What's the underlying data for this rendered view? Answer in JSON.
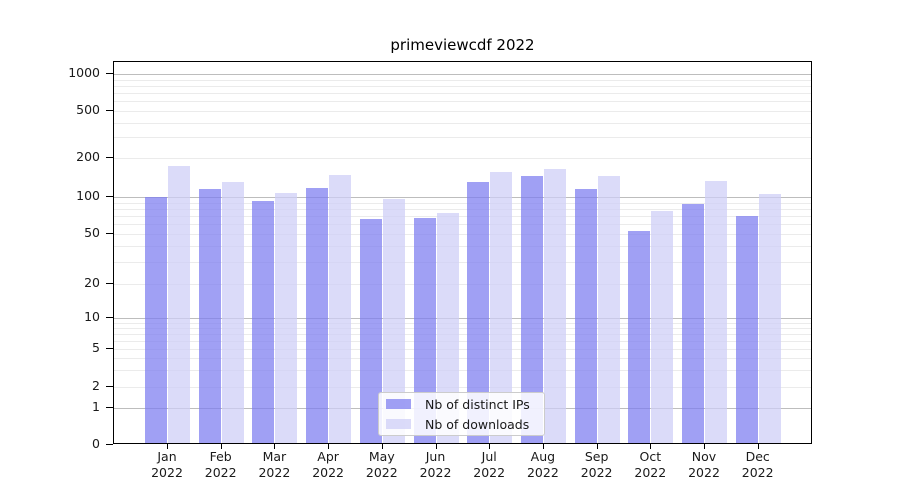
{
  "chart_data": {
    "type": "bar",
    "title": "primeviewcdf 2022",
    "categories": [
      "Jan 2022",
      "Feb 2022",
      "Mar 2022",
      "Apr 2022",
      "May 2022",
      "Jun 2022",
      "Jul 2022",
      "Aug 2022",
      "Sep 2022",
      "Oct 2022",
      "Nov 2022",
      "Dec 2022"
    ],
    "x_tick_months": [
      "Jan",
      "Feb",
      "Mar",
      "Apr",
      "May",
      "Jun",
      "Jul",
      "Aug",
      "Sep",
      "Oct",
      "Nov",
      "Dec"
    ],
    "x_tick_year": "2022",
    "series": [
      {
        "name": "Nb of distinct IPs",
        "color": "rgba(124,124,240,0.72)",
        "approx_hex_on_white": "#a4a4f3",
        "values": [
          100,
          115,
          93,
          118,
          66,
          67,
          131,
          145,
          116,
          53,
          88,
          70
        ]
      },
      {
        "name": "Nb of downloads",
        "color": "rgba(205,205,246,0.72)",
        "approx_hex_on_white": "#dadaf8",
        "values": [
          175,
          131,
          107,
          148,
          96,
          74,
          157,
          164,
          147,
          77,
          133,
          106
        ]
      }
    ],
    "yscale": "symlog-like (log decades above 1, linear 0-1)",
    "y_tick_labels": [
      "1000",
      "500",
      "200",
      "100",
      "50",
      "20",
      "10",
      "5",
      "2",
      "1",
      "0"
    ],
    "y_tick_values": [
      1000,
      500,
      200,
      100,
      50,
      20,
      10,
      5,
      2,
      1,
      0
    ],
    "ylim": [
      0,
      1300
    ],
    "grid": "horizontal major + log minor gridlines",
    "legend_position": "lower center",
    "major_grid_color": "#bdbdbd",
    "minor_grid_color": "#ebebeb"
  }
}
